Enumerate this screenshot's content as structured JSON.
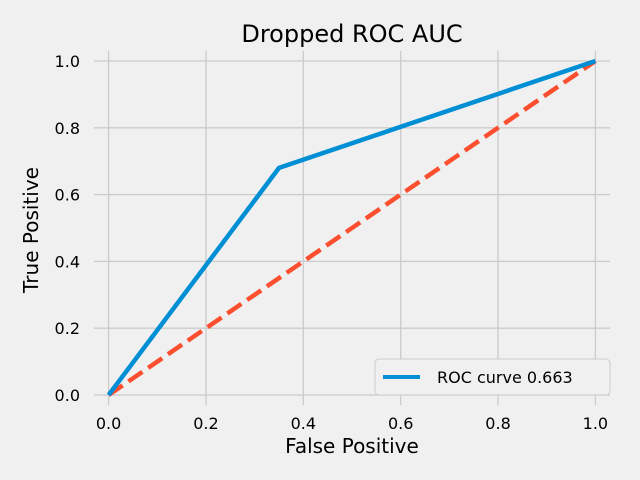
{
  "chart_data": {
    "type": "line",
    "title": "Dropped ROC AUC",
    "xlabel": "False Positive",
    "ylabel": "True Positive",
    "xlim": [
      -0.03,
      1.03
    ],
    "ylim": [
      -0.03,
      1.03
    ],
    "x_ticks": [
      "0.0",
      "0.2",
      "0.4",
      "0.6",
      "0.8",
      "1.0"
    ],
    "y_ticks": [
      "0.0",
      "0.2",
      "0.4",
      "0.6",
      "0.8",
      "1.0"
    ],
    "grid": true,
    "legend_position": "lower-right",
    "series": [
      {
        "name": "ROC curve 0.663",
        "color": "#008fd5",
        "style": "solid",
        "x": [
          0.0,
          0.35,
          1.0
        ],
        "y": [
          0.0,
          0.68,
          1.0
        ]
      },
      {
        "color": "#fc4f30",
        "style": "dashed",
        "x": [
          0.0,
          1.0
        ],
        "y": [
          0.0,
          1.0
        ]
      }
    ]
  }
}
